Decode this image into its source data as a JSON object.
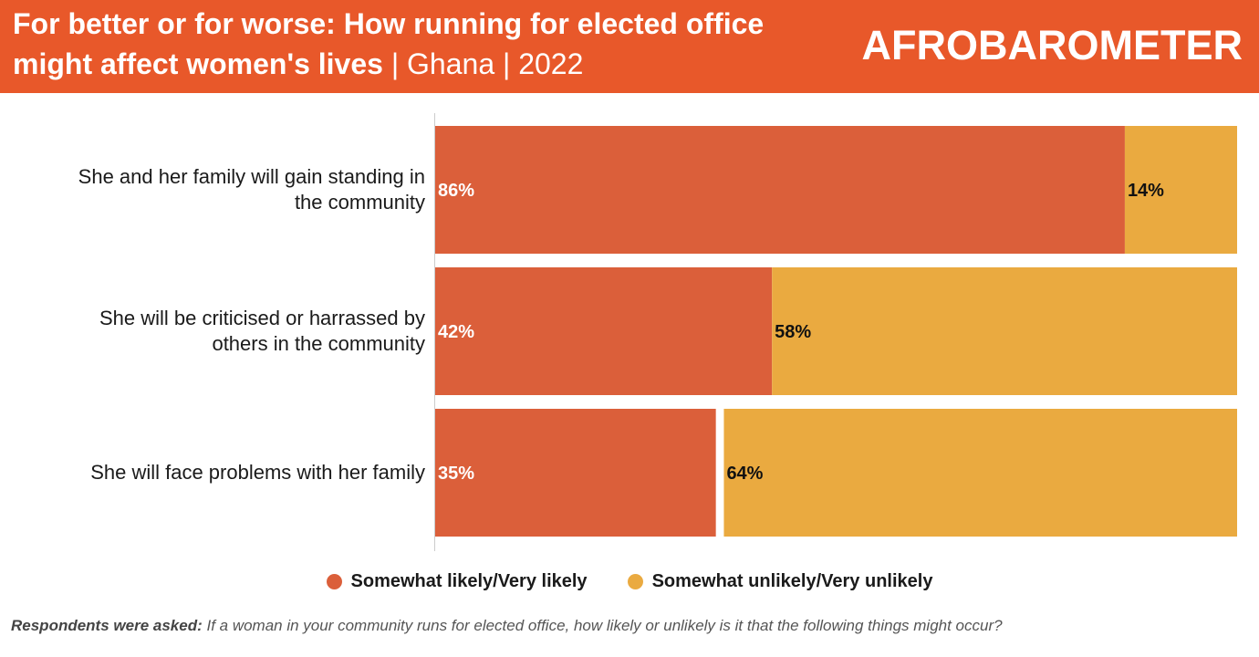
{
  "header": {
    "title_main": "For better or for worse: How running for elected office might affect women's lives",
    "title_sub": " | Ghana | 2022",
    "logo_text": "AFROBAROMETER"
  },
  "colors": {
    "header_bg": "#e8582a",
    "likely": "#db5f3a",
    "unlikely": "#eaaa40"
  },
  "chart_data": {
    "type": "bar",
    "orientation": "horizontal",
    "stacked": true,
    "categories": [
      "She and her family will gain standing in the community",
      "She will be criticised or harrassed by others in the community",
      "She will face problems with her family"
    ],
    "category_lines": [
      [
        "She and her family will gain standing in",
        "the community"
      ],
      [
        "She will be criticised or harrassed by",
        "others in the community"
      ],
      [
        "She will face problems with her family"
      ]
    ],
    "series": [
      {
        "name": "Somewhat likely/Very likely",
        "values": [
          86,
          42,
          35
        ],
        "labels": [
          "86%",
          "42%",
          "35%"
        ]
      },
      {
        "name": "Somewhat unlikely/Very unlikely",
        "values": [
          14,
          58,
          64
        ],
        "labels": [
          "14%",
          "58%",
          "64%"
        ]
      }
    ],
    "xlim": [
      0,
      100
    ],
    "legend_position": "bottom",
    "grid": false
  },
  "footnote": {
    "lead": "Respondents were asked:",
    "text": " If a woman in your community runs for elected office, how likely or unlikely is it that the following things might occur?"
  }
}
